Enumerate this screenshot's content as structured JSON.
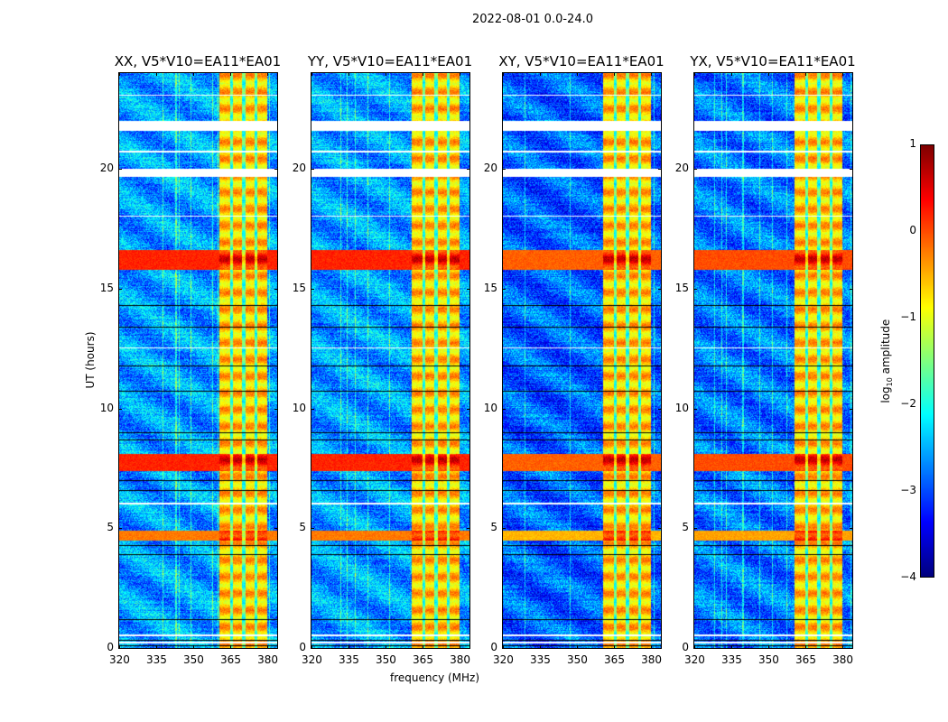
{
  "chart_data": {
    "type": "heatmap",
    "title": "2022-08-01 0.0-24.0",
    "xlabel": "frequency (MHz)",
    "ylabel": "UT (hours)",
    "xlim": [
      320,
      384
    ],
    "ylim": [
      0,
      24
    ],
    "xticks": [
      320,
      335,
      350,
      365,
      380
    ],
    "yticks": [
      0,
      5,
      10,
      15,
      20
    ],
    "panels": [
      {
        "title": "XX, V5*V10=EA11*EA01",
        "base_level": -2.6
      },
      {
        "title": "YY, V5*V10=EA11*EA01",
        "base_level": -2.6
      },
      {
        "title": "XY, V5*V10=EA11*EA01",
        "base_level": -2.9
      },
      {
        "title": "YX, V5*V10=EA11*EA01",
        "base_level": -2.8
      }
    ],
    "rfi_band_mhz": [
      360.5,
      380
    ],
    "rfi_band_level": -0.6,
    "rfi_stripe_gaps_mhz": [
      365.5,
      370.5,
      375.5
    ],
    "strong_events_ut": [
      [
        15.8,
        16.6,
        0.7
      ],
      [
        7.4,
        8.1,
        0.7
      ],
      [
        4.5,
        4.9,
        0.2
      ]
    ],
    "flagged_ut_ranges": [
      [
        21.6,
        22.0
      ],
      [
        19.65,
        20.0
      ],
      [
        23.05,
        23.1
      ],
      [
        20.7,
        20.75
      ],
      [
        6.0,
        6.08
      ],
      [
        0.18,
        0.26
      ],
      [
        0.5,
        0.55
      ],
      [
        12.5,
        12.55
      ],
      [
        18.0,
        18.05
      ]
    ],
    "black_lines_ut": [
      13.4,
      10.75,
      8.7,
      9.0,
      7.0,
      6.6,
      4.3,
      3.9,
      1.2,
      0.35,
      0.1,
      14.3,
      11.8
    ],
    "colorbar": {
      "label": "log",
      "label_sub": "10",
      "label_rest": " amplitude",
      "range": [
        -4,
        1
      ],
      "ticks": [
        "1",
        "0",
        "−1",
        "−2",
        "−3",
        "−4"
      ],
      "colormap": "jet"
    }
  }
}
